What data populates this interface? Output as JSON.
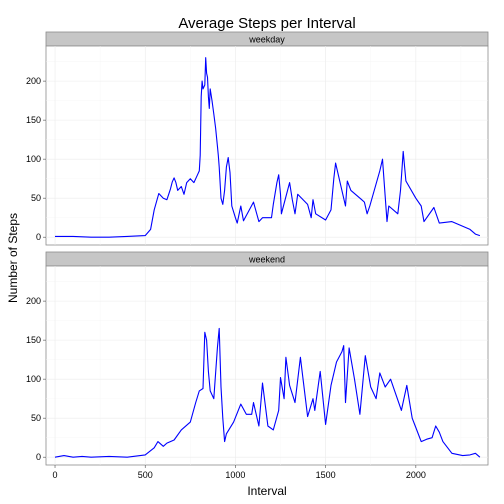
{
  "chart_data": {
    "type": "line",
    "title": "Average Steps per Interval",
    "xlabel": "Interval",
    "ylabel": "Number of Steps",
    "xlim": [
      -50,
      2400
    ],
    "ylim": [
      -10,
      245
    ],
    "x_ticks": [
      0,
      500,
      1000,
      1500,
      2000
    ],
    "y_ticks": [
      0,
      50,
      100,
      150,
      200
    ],
    "grid": true,
    "line_color": "#0000ff",
    "panels": [
      {
        "strip": "weekday",
        "x": [
          0,
          100,
          200,
          300,
          400,
          500,
          530,
          550,
          575,
          600,
          620,
          630,
          640,
          650,
          660,
          670,
          680,
          700,
          715,
          730,
          750,
          770,
          790,
          800,
          805,
          810,
          815,
          820,
          830,
          835,
          840,
          845,
          850,
          855,
          860,
          870,
          880,
          890,
          900,
          905,
          910,
          920,
          930,
          940,
          950,
          960,
          970,
          980,
          1000,
          1010,
          1030,
          1045,
          1100,
          1130,
          1150,
          1200,
          1210,
          1230,
          1240,
          1250,
          1255,
          1300,
          1315,
          1330,
          1345,
          1400,
          1420,
          1430,
          1445,
          1500,
          1530,
          1545,
          1555,
          1600,
          1610,
          1620,
          1640,
          1700,
          1715,
          1730,
          1745,
          1800,
          1815,
          1830,
          1840,
          1850,
          1900,
          1915,
          1930,
          1945,
          2000,
          2030,
          2045,
          2100,
          2130,
          2200,
          2300,
          2330,
          2355
        ],
        "y": [
          1,
          1,
          0,
          0,
          1,
          2,
          10,
          35,
          56,
          50,
          48,
          55,
          62,
          71,
          76,
          70,
          60,
          65,
          55,
          70,
          75,
          70,
          80,
          85,
          105,
          180,
          200,
          190,
          195,
          230,
          210,
          205,
          180,
          165,
          190,
          175,
          158,
          140,
          117,
          105,
          90,
          50,
          42,
          60,
          90,
          102,
          83,
          40,
          25,
          18,
          40,
          21,
          45,
          20,
          25,
          25,
          42,
          70,
          80,
          55,
          30,
          70,
          48,
          30,
          55,
          42,
          25,
          48,
          30,
          22,
          35,
          75,
          95,
          50,
          40,
          72,
          60,
          48,
          45,
          30,
          40,
          85,
          100,
          52,
          20,
          40,
          30,
          60,
          110,
          72,
          50,
          40,
          20,
          38,
          18,
          20,
          10,
          4,
          2
        ]
      },
      {
        "strip": "weekend",
        "x": [
          0,
          50,
          100,
          150,
          200,
          300,
          400,
          500,
          550,
          570,
          600,
          620,
          660,
          700,
          750,
          780,
          800,
          820,
          830,
          840,
          850,
          860,
          880,
          900,
          910,
          920,
          930,
          940,
          950,
          990,
          1030,
          1060,
          1090,
          1100,
          1130,
          1150,
          1180,
          1210,
          1240,
          1250,
          1270,
          1280,
          1300,
          1330,
          1360,
          1400,
          1430,
          1440,
          1470,
          1500,
          1530,
          1560,
          1590,
          1600,
          1610,
          1630,
          1660,
          1690,
          1720,
          1750,
          1780,
          1800,
          1830,
          1860,
          1890,
          1920,
          1950,
          1980,
          2000,
          2030,
          2060,
          2090,
          2110,
          2130,
          2150,
          2200,
          2260,
          2300,
          2330,
          2355
        ],
        "y": [
          0,
          2,
          0,
          1,
          0,
          1,
          0,
          3,
          12,
          20,
          14,
          18,
          22,
          35,
          45,
          70,
          85,
          88,
          160,
          150,
          110,
          85,
          75,
          140,
          165,
          90,
          50,
          20,
          30,
          45,
          68,
          55,
          55,
          70,
          40,
          95,
          40,
          35,
          60,
          102,
          75,
          128,
          92,
          70,
          128,
          52,
          75,
          60,
          110,
          42,
          92,
          122,
          135,
          143,
          70,
          140,
          100,
          55,
          130,
          90,
          75,
          108,
          90,
          100,
          80,
          60,
          92,
          50,
          38,
          20,
          23,
          25,
          40,
          32,
          20,
          5,
          2,
          3,
          5,
          0
        ]
      }
    ]
  }
}
